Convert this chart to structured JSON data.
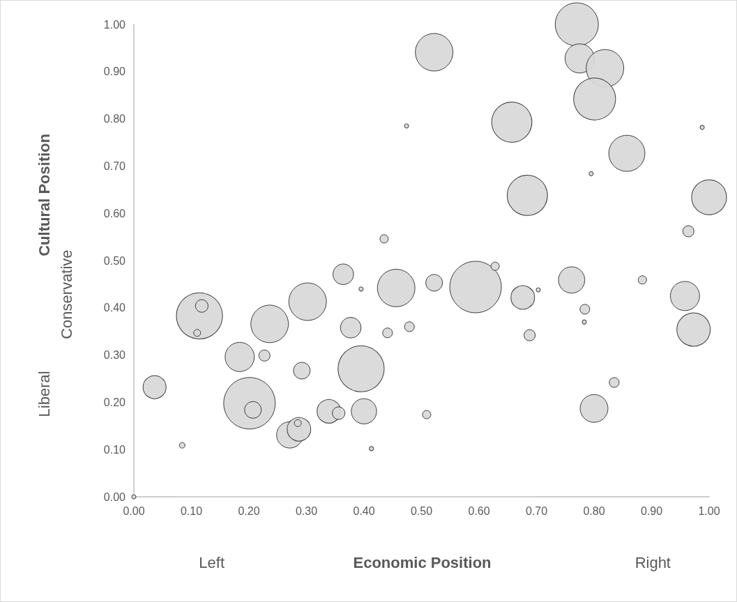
{
  "chart_data": {
    "type": "bubble",
    "xlabel": "Economic Position",
    "ylabel": "Cultural Position",
    "annotations": [
      "Left",
      "Right",
      "Liberal",
      "Conservative"
    ],
    "xlim": [
      0,
      1
    ],
    "ylim": [
      0,
      1
    ],
    "xticks": [
      {
        "value": 0,
        "label": "0.00"
      },
      {
        "value": 0.1,
        "label": "0.10"
      },
      {
        "value": 0.2,
        "label": "0.20"
      },
      {
        "value": 0.3,
        "label": "0.30"
      },
      {
        "value": 0.4,
        "label": "0.40"
      },
      {
        "value": 0.5,
        "label": "0.50"
      },
      {
        "value": 0.6,
        "label": "0.60"
      },
      {
        "value": 0.7,
        "label": "0.70"
      },
      {
        "value": 0.8,
        "label": "0.80"
      },
      {
        "value": 0.9,
        "label": "0.90"
      },
      {
        "value": 1,
        "label": "1.00"
      }
    ],
    "yticks": [
      {
        "value": 0,
        "label": "0.00"
      },
      {
        "value": 0.1,
        "label": "0.10"
      },
      {
        "value": 0.2,
        "label": "0.20"
      },
      {
        "value": 0.3,
        "label": "0.30"
      },
      {
        "value": 0.4,
        "label": "0.40"
      },
      {
        "value": 0.5,
        "label": "0.50"
      },
      {
        "value": 0.6,
        "label": "0.60"
      },
      {
        "value": 0.7,
        "label": "0.70"
      },
      {
        "value": 0.8,
        "label": "0.80"
      },
      {
        "value": 0.9,
        "label": "0.90"
      },
      {
        "value": 1,
        "label": "1.00"
      }
    ],
    "grid": false,
    "marker": "circle",
    "series": [
      {
        "color": "#d9d9d9",
        "x": [
          0.036,
          0.084,
          0.114,
          0.118,
          0.11,
          0.184,
          0.227,
          0.201,
          0.207,
          0.236,
          0.302,
          0.364,
          0.395,
          0.435,
          0.456,
          0.377,
          0.441,
          0.479,
          0.292,
          0.395,
          0.271,
          0.287,
          0.285,
          0.339,
          0.356,
          0.4,
          0.413,
          0.77,
          0.775,
          0.819,
          0.801,
          0.522,
          0.657,
          0.857,
          0.795,
          0.684,
          1.0,
          0.964,
          0.988,
          0.474,
          0.594,
          0.628,
          0.522,
          0.676,
          0.703,
          0.761,
          0.784,
          0.783,
          0.688,
          0.884,
          0.958,
          0.973,
          0.835,
          0.8,
          0.509,
          0
        ],
        "values": [
          0.232,
          0.109,
          0.383,
          0.404,
          0.347,
          0.296,
          0.299,
          0.198,
          0.184,
          0.366,
          0.413,
          0.471,
          0.44,
          0.546,
          0.442,
          0.358,
          0.347,
          0.36,
          0.267,
          0.271,
          0.131,
          0.143,
          0.156,
          0.181,
          0.177,
          0.181,
          0.102,
          1.0,
          0.928,
          0.907,
          0.842,
          0.941,
          0.793,
          0.727,
          0.684,
          0.638,
          0.634,
          0.562,
          0.782,
          0.785,
          0.444,
          0.488,
          0.453,
          0.422,
          0.438,
          0.459,
          0.397,
          0.37,
          0.342,
          0.459,
          0.425,
          0.354,
          0.242,
          0.187,
          0.174,
          0
        ],
        "sizes": [
          0.2,
          0.012,
          0.8,
          0.06,
          0.018,
          0.32,
          0.047,
          1,
          0.105,
          0.53,
          0.53,
          0.16,
          0.0066,
          0.026,
          0.53,
          0.16,
          0.036,
          0.036,
          0.105,
          0.8,
          0.26,
          0.21,
          0.018,
          0.21,
          0.06,
          0.24,
          0.0066,
          0.7,
          0.32,
          0.53,
          0.66,
          0.53,
          0.61,
          0.49,
          0.0066,
          0.61,
          0.46,
          0.047,
          0.0066,
          0.0066,
          1,
          0.026,
          0.105,
          0.21,
          0.0066,
          0.26,
          0.036,
          0.0066,
          0.047,
          0.026,
          0.32,
          0.42,
          0.036,
          0.29,
          0.026,
          0.0066
        ]
      }
    ]
  }
}
